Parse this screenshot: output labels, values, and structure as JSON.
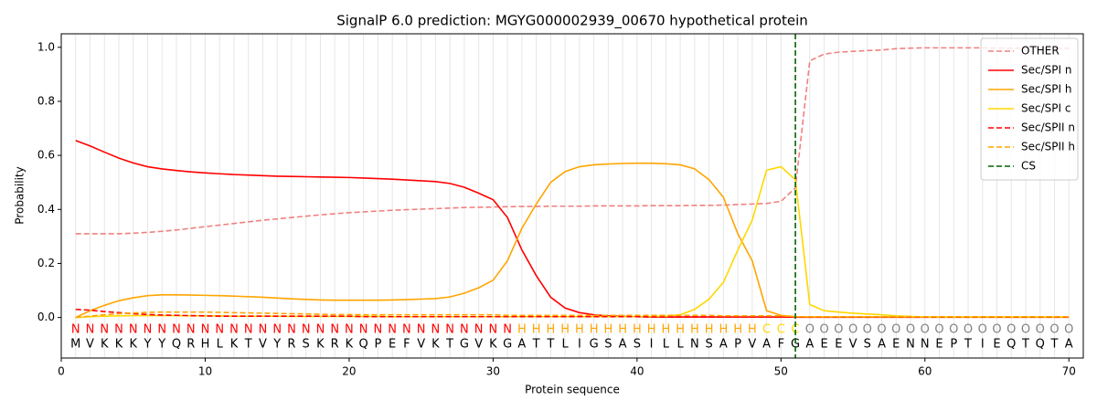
{
  "chart_data": {
    "type": "line",
    "title": "SignalP 6.0 prediction: MGYG000002939_00670 hypothetical protein",
    "xlabel": "Protein sequence",
    "ylabel": "Probability",
    "xlim": [
      0,
      71
    ],
    "ylim": [
      -0.15,
      1.05
    ],
    "xticks": [
      0,
      10,
      20,
      30,
      40,
      50,
      60,
      70
    ],
    "yticks": [
      {
        "value": 0,
        "label": "0.0"
      },
      {
        "value": 0.2,
        "label": "0.2"
      },
      {
        "value": 0.4,
        "label": "0.4"
      },
      {
        "value": 0.6,
        "label": "0.6"
      },
      {
        "value": 0.8,
        "label": "0.8"
      },
      {
        "value": 1,
        "label": "1.0"
      }
    ],
    "grid": "x",
    "legend": "upper right",
    "x": [
      1,
      2,
      3,
      4,
      5,
      6,
      7,
      8,
      9,
      10,
      11,
      12,
      13,
      14,
      15,
      16,
      17,
      18,
      19,
      20,
      21,
      22,
      23,
      24,
      25,
      26,
      27,
      28,
      29,
      30,
      31,
      32,
      33,
      34,
      35,
      36,
      37,
      38,
      39,
      40,
      41,
      42,
      43,
      44,
      45,
      46,
      47,
      48,
      49,
      50,
      51,
      52,
      53,
      54,
      55,
      56,
      57,
      58,
      59,
      60,
      61,
      62,
      63,
      64,
      65,
      66,
      67,
      68,
      69,
      70
    ],
    "regions": [
      "N",
      "N",
      "N",
      "N",
      "N",
      "N",
      "N",
      "N",
      "N",
      "N",
      "N",
      "N",
      "N",
      "N",
      "N",
      "N",
      "N",
      "N",
      "N",
      "N",
      "N",
      "N",
      "N",
      "N",
      "N",
      "N",
      "N",
      "N",
      "N",
      "N",
      "N",
      "H",
      "H",
      "H",
      "H",
      "H",
      "H",
      "H",
      "H",
      "H",
      "H",
      "H",
      "H",
      "H",
      "H",
      "H",
      "H",
      "H",
      "C",
      "C",
      "C",
      "O",
      "O",
      "O",
      "O",
      "O",
      "O",
      "O",
      "O",
      "O",
      "O",
      "O",
      "O",
      "O",
      "O",
      "O",
      "O",
      "O",
      "O",
      "O"
    ],
    "region_colors": {
      "N": "#ff0000",
      "H": "#ffa500",
      "C": "#ffd700",
      "O": "#808080"
    },
    "sequence": [
      "M",
      "V",
      "K",
      "K",
      "K",
      "Y",
      "Y",
      "Q",
      "R",
      "H",
      "L",
      "K",
      "T",
      "V",
      "Y",
      "R",
      "S",
      "K",
      "R",
      "K",
      "Q",
      "P",
      "E",
      "F",
      "V",
      "K",
      "T",
      "G",
      "V",
      "K",
      "G",
      "A",
      "T",
      "T",
      "L",
      "I",
      "G",
      "S",
      "A",
      "S",
      "I",
      "L",
      "L",
      "N",
      "S",
      "A",
      "P",
      "V",
      "A",
      "F",
      "G",
      "A",
      "E",
      "E",
      "V",
      "S",
      "A",
      "E",
      "N",
      "N",
      "E",
      "P",
      "T",
      "I",
      "E",
      "Q",
      "T",
      "Q",
      "T",
      "A"
    ],
    "series": [
      {
        "name": "OTHER",
        "color": "#f08080",
        "dash": true,
        "values": [
          0.31,
          0.31,
          0.31,
          0.31,
          0.312,
          0.315,
          0.319,
          0.324,
          0.33,
          0.336,
          0.342,
          0.348,
          0.354,
          0.36,
          0.365,
          0.37,
          0.375,
          0.38,
          0.384,
          0.388,
          0.391,
          0.394,
          0.397,
          0.399,
          0.401,
          0.403,
          0.405,
          0.407,
          0.408,
          0.409,
          0.41,
          0.411,
          0.411,
          0.412,
          0.412,
          0.412,
          0.413,
          0.413,
          0.413,
          0.413,
          0.414,
          0.414,
          0.414,
          0.415,
          0.415,
          0.416,
          0.418,
          0.42,
          0.422,
          0.43,
          0.48,
          0.95,
          0.975,
          0.982,
          0.985,
          0.988,
          0.99,
          0.995,
          0.997,
          0.998,
          0.998,
          0.998,
          0.998,
          0.998,
          0.997,
          0.997,
          0.997,
          0.997,
          0.997,
          0.997
        ]
      },
      {
        "name": "Sec/SPI n",
        "color": "#ff0000",
        "dash": false,
        "values": [
          0.655,
          0.635,
          0.612,
          0.59,
          0.572,
          0.558,
          0.55,
          0.544,
          0.539,
          0.535,
          0.532,
          0.529,
          0.527,
          0.525,
          0.523,
          0.522,
          0.521,
          0.52,
          0.519,
          0.518,
          0.516,
          0.514,
          0.512,
          0.509,
          0.506,
          0.503,
          0.496,
          0.482,
          0.46,
          0.436,
          0.37,
          0.25,
          0.155,
          0.075,
          0.035,
          0.018,
          0.01,
          0.006,
          0.004,
          0.003,
          0.002,
          0.002,
          0.002,
          0.002,
          0.002,
          0.002,
          0.002,
          0.002,
          0.002,
          0.002,
          0.001,
          0.001,
          0.001,
          0.001,
          0.001,
          0.001,
          0.001,
          0.001,
          0.001,
          0.001,
          0.001,
          0.001,
          0.001,
          0.001,
          0.001,
          0.001,
          0.001,
          0.001,
          0.001,
          0.001
        ]
      },
      {
        "name": "Sec/SPI h",
        "color": "#ffa500",
        "dash": false,
        "values": [
          0,
          0.025,
          0.045,
          0.062,
          0.073,
          0.081,
          0.084,
          0.084,
          0.083,
          0.082,
          0.081,
          0.079,
          0.077,
          0.075,
          0.072,
          0.069,
          0.067,
          0.065,
          0.064,
          0.064,
          0.064,
          0.064,
          0.065,
          0.066,
          0.068,
          0.07,
          0.076,
          0.09,
          0.11,
          0.138,
          0.21,
          0.33,
          0.42,
          0.5,
          0.54,
          0.558,
          0.565,
          0.568,
          0.57,
          0.571,
          0.571,
          0.569,
          0.565,
          0.55,
          0.51,
          0.445,
          0.31,
          0.21,
          0.025,
          0.008,
          0.003,
          0.002,
          0.002,
          0.002,
          0.002,
          0.002,
          0.002,
          0.002,
          0.002,
          0.002,
          0.002,
          0.002,
          0.002,
          0.002,
          0.002,
          0.002,
          0.002,
          0.002,
          0.002,
          0.002
        ]
      },
      {
        "name": "Sec/SPI c",
        "color": "#ffd700",
        "dash": false,
        "values": [
          0,
          0.003,
          0.005,
          0.006,
          0.007,
          0.007,
          0.007,
          0.007,
          0.006,
          0.006,
          0.006,
          0.005,
          0.005,
          0.005,
          0.005,
          0.004,
          0.004,
          0.004,
          0.004,
          0.004,
          0.004,
          0.004,
          0.003,
          0.003,
          0.003,
          0.003,
          0.003,
          0.003,
          0.003,
          0.003,
          0.003,
          0.003,
          0.003,
          0.003,
          0.003,
          0.003,
          0.003,
          0.003,
          0.003,
          0.003,
          0.004,
          0.005,
          0.01,
          0.03,
          0.068,
          0.13,
          0.25,
          0.36,
          0.545,
          0.558,
          0.51,
          0.048,
          0.025,
          0.02,
          0.016,
          0.013,
          0.01,
          0.006,
          0.004,
          0.002,
          0.002,
          0.002,
          0.002,
          0.002,
          0.002,
          0.002,
          0.002,
          0.002,
          0.002,
          0.002
        ]
      },
      {
        "name": "Sec/SPII n",
        "color": "#ff0000",
        "dash": true,
        "values": [
          0.03,
          0.027,
          0.022,
          0.018,
          0.014,
          0.011,
          0.009,
          0.008,
          0.007,
          0.006,
          0.005,
          0.005,
          0.005,
          0.005,
          0.005,
          0.005,
          0.005,
          0.005,
          0.005,
          0.005,
          0.003,
          0.003,
          0.003,
          0.003,
          0.003,
          0.003,
          0.003,
          0.003,
          0.003,
          0.003,
          0.003,
          0.003,
          0.003,
          0.003,
          0.003,
          0.003,
          0.003,
          0.003,
          0.003,
          0.003,
          0.002,
          0.002,
          0.002,
          0.002,
          0.002,
          0.002,
          0.002,
          0.002,
          0.002,
          0.002,
          0.002,
          0.002,
          0.002,
          0.002,
          0.002,
          0.002,
          0.002,
          0.002,
          0.002,
          0.002,
          0.002,
          0.002,
          0.002,
          0.002,
          0.002,
          0.002,
          0.002,
          0.002,
          0.002,
          0.002
        ]
      },
      {
        "name": "Sec/SPII h",
        "color": "#ffa500",
        "dash": true,
        "values": [
          0,
          0.005,
          0.01,
          0.014,
          0.017,
          0.019,
          0.02,
          0.02,
          0.02,
          0.02,
          0.019,
          0.018,
          0.017,
          0.016,
          0.015,
          0.014,
          0.013,
          0.012,
          0.011,
          0.011,
          0.01,
          0.01,
          0.01,
          0.01,
          0.01,
          0.01,
          0.01,
          0.01,
          0.01,
          0.01,
          0.008,
          0.008,
          0.008,
          0.008,
          0.008,
          0.008,
          0.008,
          0.008,
          0.008,
          0.008,
          0.008,
          0.008,
          0.008,
          0.008,
          0.008,
          0.006,
          0.006,
          0.006,
          0.006,
          0.006,
          0.003,
          0.003,
          0.003,
          0.003,
          0.003,
          0.003,
          0.003,
          0.003,
          0.003,
          0.003,
          0.003,
          0.003,
          0.003,
          0.003,
          0.003,
          0.003,
          0.003,
          0.003,
          0.003,
          0.003
        ]
      }
    ],
    "cs": {
      "name": "CS",
      "x": 51,
      "color": "#006400"
    }
  }
}
